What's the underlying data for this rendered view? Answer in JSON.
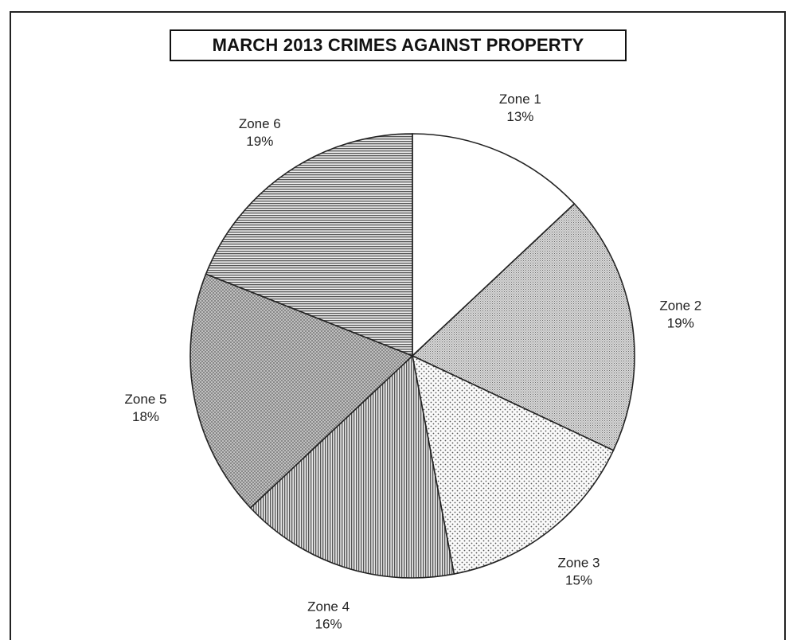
{
  "colors": {
    "outline": "#222222",
    "background": "#ffffff"
  },
  "chart_data": {
    "type": "pie",
    "title": "MARCH 2013 CRIMES AGAINST PROPERTY",
    "start": "12 o'clock",
    "direction": "clockwise",
    "slices": [
      {
        "label": "Zone 1",
        "value": 13,
        "pct": "13%",
        "pattern": "solid-white"
      },
      {
        "label": "Zone 2",
        "value": 19,
        "pct": "19%",
        "pattern": "fine-dots-gray"
      },
      {
        "label": "Zone 3",
        "value": 15,
        "pct": "15%",
        "pattern": "sparse-dots"
      },
      {
        "label": "Zone 4",
        "value": 16,
        "pct": "16%",
        "pattern": "vertical-lines"
      },
      {
        "label": "Zone 5",
        "value": 18,
        "pct": "18%",
        "pattern": "crosshatch-gray"
      },
      {
        "label": "Zone 6",
        "value": 19,
        "pct": "19%",
        "pattern": "horizontal-lines"
      }
    ]
  }
}
